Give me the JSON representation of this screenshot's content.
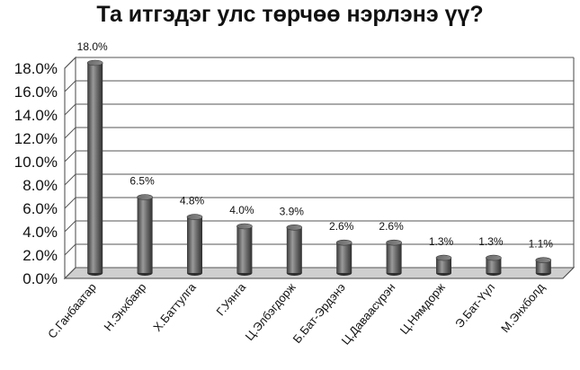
{
  "chart_data": {
    "type": "bar",
    "title": "Та итгэдэг улс төрчөө нэрлэнэ үү?",
    "categories": [
      "С.Ганбаатар",
      "Н.Энхбаяр",
      "Х.Баттулга",
      "Г.Уянга",
      "Ц.Элбэгдорж",
      "Б.Бат-Эрдэнэ",
      "Ц.Даваасүрэн",
      "Ц.Нямдорж",
      "Э.Бат-Үүл",
      "М.Энхболд"
    ],
    "values": [
      18.0,
      6.5,
      4.8,
      4.0,
      3.9,
      2.6,
      2.6,
      1.3,
      1.3,
      1.1
    ],
    "data_labels": [
      "18.0%",
      "6.5%",
      "4.8%",
      "4.0%",
      "3.9%",
      "2.6%",
      "2.6%",
      "1.3%",
      "1.3%",
      "1.1%"
    ],
    "y_ticks": [
      "0.0%",
      "2.0%",
      "4.0%",
      "6.0%",
      "8.0%",
      "10.0%",
      "12.0%",
      "14.0%",
      "16.0%",
      "18.0%"
    ],
    "ylim": [
      0,
      18
    ],
    "ylabel": "",
    "xlabel": "",
    "grid": true,
    "legend": "none",
    "colors": {
      "bar": "#4d4d4d",
      "bar_light": "#9a9a9a",
      "grid": "#555555",
      "floor": "#cfcfcf"
    }
  }
}
